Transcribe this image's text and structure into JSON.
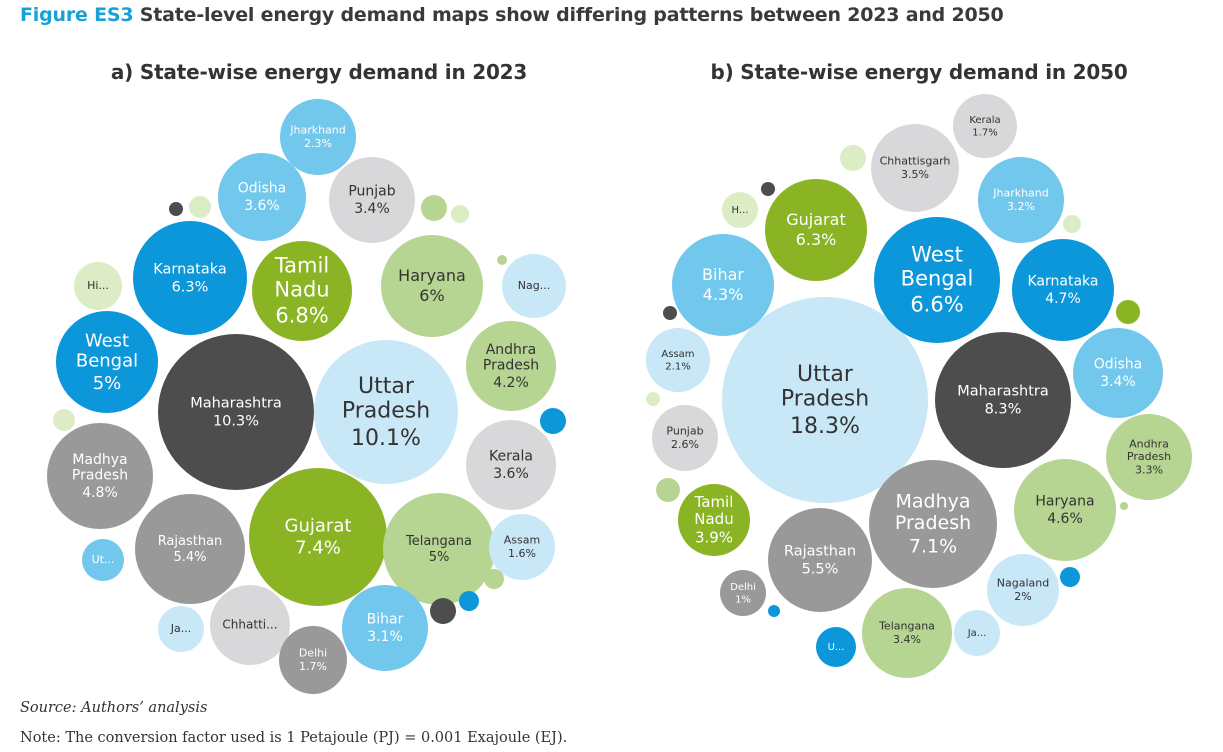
{
  "figure": {
    "label": "Figure ES3",
    "title": "State-level energy demand maps show differing patterns between 2023 and 2050"
  },
  "source": "Source: Authors’ analysis",
  "note": "Note: The conversion factor used is 1 Petajoule (PJ) = 0.001 Exajoule (EJ).",
  "colors": {
    "blue": "#0b97d9",
    "light_blue": "#72c7ec",
    "pale_blue": "#c8e7f7",
    "green": "#8ab424",
    "light_green": "#b6d592",
    "pale_green": "#dcecc4",
    "dark_grey": "#4d4d4d",
    "grey": "#999999",
    "light_grey": "#d8d8da"
  },
  "chart_data": [
    {
      "type": "bubble",
      "title": "a) State-wise energy demand in 2023",
      "unit": "%",
      "bubbles": [
        {
          "label": "Uttar Pradesh",
          "display": "Uttar\nPradesh",
          "value": 10.1,
          "value_text": "10.1%",
          "color": "pale_blue"
        },
        {
          "label": "Maharashtra",
          "display": "Maharashtra",
          "value": 10.3,
          "value_text": "10.3%",
          "color": "dark_grey"
        },
        {
          "label": "Gujarat",
          "display": "Gujarat",
          "value": 7.4,
          "value_text": "7.4%",
          "color": "green"
        },
        {
          "label": "Tamil Nadu",
          "display": "Tamil\nNadu",
          "value": 6.8,
          "value_text": "6.8%",
          "color": "green"
        },
        {
          "label": "Karnataka",
          "display": "Karnataka",
          "value": 6.3,
          "value_text": "6.3%",
          "color": "blue"
        },
        {
          "label": "Haryana",
          "display": "Haryana",
          "value": 6,
          "value_text": "6%",
          "color": "light_green"
        },
        {
          "label": "Rajasthan",
          "display": "Rajasthan",
          "value": 5.4,
          "value_text": "5.4%",
          "color": "grey"
        },
        {
          "label": "West Bengal",
          "display": "West\nBengal",
          "value": 5,
          "value_text": "5%",
          "color": "blue"
        },
        {
          "label": "Telangana",
          "display": "Telangana",
          "value": 5,
          "value_text": "5%",
          "color": "light_green"
        },
        {
          "label": "Madhya Pradesh",
          "display": "Madhya\nPradesh",
          "value": 4.8,
          "value_text": "4.8%",
          "color": "grey"
        },
        {
          "label": "Andhra Pradesh",
          "display": "Andhra\nPradesh",
          "value": 4.2,
          "value_text": "4.2%",
          "color": "light_green"
        },
        {
          "label": "Odisha",
          "display": "Odisha",
          "value": 3.6,
          "value_text": "3.6%",
          "color": "light_blue"
        },
        {
          "label": "Kerala",
          "display": "Kerala",
          "value": 3.6,
          "value_text": "3.6%",
          "color": "light_grey"
        },
        {
          "label": "Punjab",
          "display": "Punjab",
          "value": 3.4,
          "value_text": "3.4%",
          "color": "light_grey"
        },
        {
          "label": "Bihar",
          "display": "Bihar",
          "value": 3.1,
          "value_text": "3.1%",
          "color": "light_blue"
        },
        {
          "label": "Jharkhand",
          "display": "Jharkhand",
          "value": 2.3,
          "value_text": "2.3%",
          "color": "light_blue"
        },
        {
          "label": "Chhattisgarh",
          "display": "Chhatti...",
          "value": null,
          "value_text": "",
          "color": "light_grey"
        },
        {
          "label": "Delhi",
          "display": "Delhi",
          "value": 1.7,
          "value_text": "1.7%",
          "color": "grey"
        },
        {
          "label": "Assam",
          "display": "Assam",
          "value": 1.6,
          "value_text": "1.6%",
          "color": "pale_blue"
        },
        {
          "label": "Nagaland",
          "display": "Nag...",
          "value": null,
          "value_text": "",
          "color": "pale_blue"
        },
        {
          "label": "Himachal Pradesh",
          "display": "Hi...",
          "value": null,
          "value_text": "",
          "color": "pale_green"
        },
        {
          "label": "Uttarakhand",
          "display": "Ut...",
          "value": null,
          "value_text": "",
          "color": "light_blue"
        },
        {
          "label": "Jammu and Kashmir",
          "display": "Ja...",
          "value": null,
          "value_text": "",
          "color": "pale_blue"
        },
        {
          "label": "",
          "display": "",
          "value": null,
          "value_text": "",
          "color": "dark_grey"
        },
        {
          "label": "",
          "display": "",
          "value": null,
          "value_text": "",
          "color": "pale_green"
        },
        {
          "label": "",
          "display": "",
          "value": null,
          "value_text": "",
          "color": "light_green"
        },
        {
          "label": "",
          "display": "",
          "value": null,
          "value_text": "",
          "color": "pale_green"
        },
        {
          "label": "",
          "display": "",
          "value": null,
          "value_text": "",
          "color": "light_green"
        },
        {
          "label": "",
          "display": "",
          "value": null,
          "value_text": "",
          "color": "pale_green"
        },
        {
          "label": "",
          "display": "",
          "value": null,
          "value_text": "",
          "color": "blue"
        },
        {
          "label": "",
          "display": "",
          "value": null,
          "value_text": "",
          "color": "light_green"
        },
        {
          "label": "",
          "display": "",
          "value": null,
          "value_text": "",
          "color": "dark_grey"
        },
        {
          "label": "",
          "display": "",
          "value": null,
          "value_text": "",
          "color": "blue"
        }
      ]
    },
    {
      "type": "bubble",
      "title": "b) State-wise energy demand in 2050",
      "unit": "%",
      "bubbles": [
        {
          "label": "Uttar Pradesh",
          "display": "Uttar\nPradesh",
          "value": 18.3,
          "value_text": "18.3%",
          "color": "pale_blue"
        },
        {
          "label": "Maharashtra",
          "display": "Maharashtra",
          "value": 8.3,
          "value_text": "8.3%",
          "color": "dark_grey"
        },
        {
          "label": "Madhya Pradesh",
          "display": "Madhya\nPradesh",
          "value": 7.1,
          "value_text": "7.1%",
          "color": "grey"
        },
        {
          "label": "West Bengal",
          "display": "West\nBengal",
          "value": 6.6,
          "value_text": "6.6%",
          "color": "blue"
        },
        {
          "label": "Gujarat",
          "display": "Gujarat",
          "value": 6.3,
          "value_text": "6.3%",
          "color": "green"
        },
        {
          "label": "Rajasthan",
          "display": "Rajasthan",
          "value": 5.5,
          "value_text": "5.5%",
          "color": "grey"
        },
        {
          "label": "Karnataka",
          "display": "Karnataka",
          "value": 4.7,
          "value_text": "4.7%",
          "color": "blue"
        },
        {
          "label": "Haryana",
          "display": "Haryana",
          "value": 4.6,
          "value_text": "4.6%",
          "color": "light_green"
        },
        {
          "label": "Bihar",
          "display": "Bihar",
          "value": 4.3,
          "value_text": "4.3%",
          "color": "light_blue"
        },
        {
          "label": "Tamil Nadu",
          "display": "Tamil\nNadu",
          "value": 3.9,
          "value_text": "3.9%",
          "color": "green"
        },
        {
          "label": "Chhattisgarh",
          "display": "Chhattisgarh",
          "value": 3.5,
          "value_text": "3.5%",
          "color": "light_grey"
        },
        {
          "label": "Odisha",
          "display": "Odisha",
          "value": 3.4,
          "value_text": "3.4%",
          "color": "light_blue"
        },
        {
          "label": "Telangana",
          "display": "Telangana",
          "value": 3.4,
          "value_text": "3.4%",
          "color": "light_green"
        },
        {
          "label": "Andhra Pradesh",
          "display": "Andhra\nPradesh",
          "value": 3.3,
          "value_text": "3.3%",
          "color": "light_green"
        },
        {
          "label": "Jharkhand",
          "display": "Jharkhand",
          "value": 3.2,
          "value_text": "3.2%",
          "color": "light_blue"
        },
        {
          "label": "Punjab",
          "display": "Punjab",
          "value": 2.6,
          "value_text": "2.6%",
          "color": "light_grey"
        },
        {
          "label": "Assam",
          "display": "Assam",
          "value": 2.1,
          "value_text": "2.1%",
          "color": "pale_blue"
        },
        {
          "label": "Nagaland",
          "display": "Nagaland",
          "value": 2,
          "value_text": "2%",
          "color": "pale_blue"
        },
        {
          "label": "Kerala",
          "display": "Kerala",
          "value": 1.7,
          "value_text": "1.7%",
          "color": "light_grey"
        },
        {
          "label": "Delhi",
          "display": "Delhi",
          "value": 1,
          "value_text": "1%",
          "color": "grey"
        },
        {
          "label": "Himachal Pradesh",
          "display": "H...",
          "value": null,
          "value_text": "",
          "color": "pale_green"
        },
        {
          "label": "Uttarakhand",
          "display": "U...",
          "value": null,
          "value_text": "",
          "color": "blue"
        },
        {
          "label": "Jammu and Kashmir",
          "display": "Ja...",
          "value": null,
          "value_text": "",
          "color": "pale_blue"
        },
        {
          "label": "",
          "display": "",
          "value": null,
          "value_text": "",
          "color": "pale_green"
        },
        {
          "label": "",
          "display": "",
          "value": null,
          "value_text": "",
          "color": "dark_grey"
        },
        {
          "label": "",
          "display": "",
          "value": null,
          "value_text": "",
          "color": "pale_green"
        },
        {
          "label": "",
          "display": "",
          "value": null,
          "value_text": "",
          "color": "green"
        },
        {
          "label": "",
          "display": "",
          "value": null,
          "value_text": "",
          "color": "dark_grey"
        },
        {
          "label": "",
          "display": "",
          "value": null,
          "value_text": "",
          "color": "pale_green"
        },
        {
          "label": "",
          "display": "",
          "value": null,
          "value_text": "",
          "color": "light_green"
        },
        {
          "label": "",
          "display": "",
          "value": null,
          "value_text": "",
          "color": "blue"
        },
        {
          "label": "",
          "display": "",
          "value": null,
          "value_text": "",
          "color": "blue"
        },
        {
          "label": "",
          "display": "",
          "value": null,
          "value_text": "",
          "color": "light_green"
        }
      ]
    }
  ]
}
